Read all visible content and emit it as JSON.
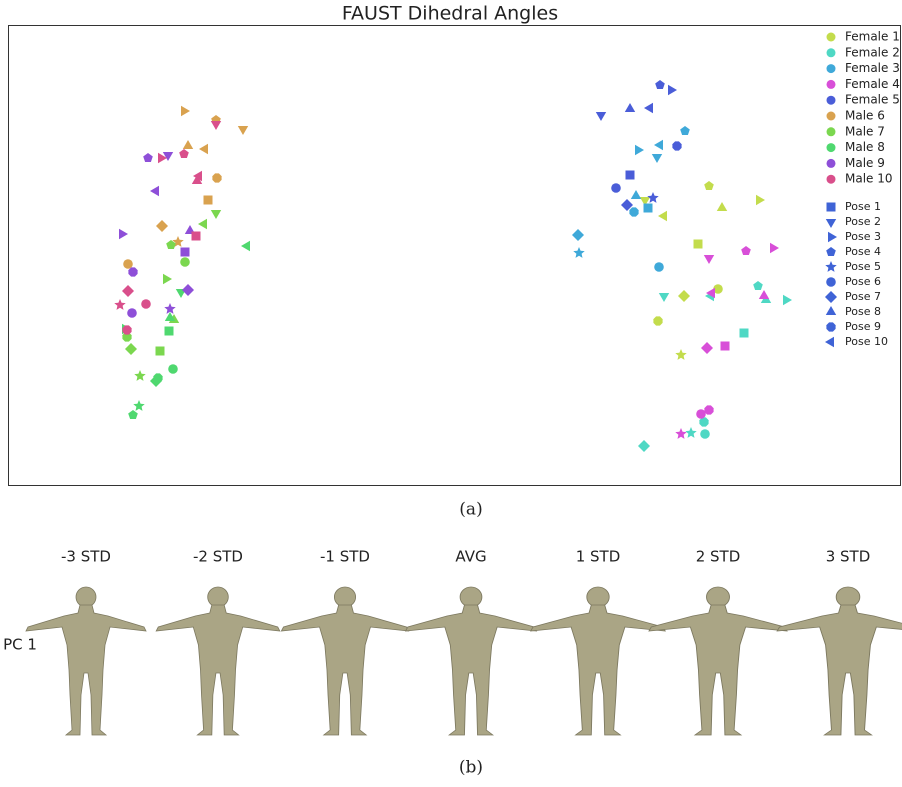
{
  "chart_data": {
    "type": "scatter",
    "title": "FAUST Dihedral Angles",
    "xlim": [
      0,
      894
    ],
    "ylim": [
      0,
      460
    ],
    "markers": [
      "square",
      "triangle-down",
      "triangle-right",
      "pentagon",
      "star",
      "circle",
      "diamond",
      "triangle-up",
      "octagon",
      "triangle-left"
    ],
    "marker_names": [
      "Pose 1",
      "Pose 2",
      "Pose 3",
      "Pose 4",
      "Pose 5",
      "Pose 6",
      "Pose 7",
      "Pose 8",
      "Pose 9",
      "Pose 10"
    ],
    "marker_legend_color": "#3f63d6",
    "series": [
      {
        "name": "Female 1",
        "color": "#c3dc4c",
        "x": [
          690,
          637,
          751,
          701,
          673,
          710,
          676,
          714,
          650,
          656
        ],
        "y": [
          241,
          285,
          285,
          299,
          130,
          196,
          189,
          277,
          164,
          269
        ]
      },
      {
        "name": "Female 2",
        "color": "#4fd8c4",
        "x": [
          736,
          656,
          778,
          750,
          683,
          697,
          636,
          758,
          696,
          703
        ],
        "y": [
          152,
          189,
          185,
          199,
          52,
          51,
          39,
          185,
          63,
          189
        ]
      },
      {
        "name": "Female 3",
        "color": "#3fa9d9",
        "x": [
          640,
          649,
          630,
          677,
          571,
          651,
          570,
          628,
          626,
          652
        ],
        "y": [
          277,
          328,
          335,
          354,
          232,
          218,
          250,
          289,
          273,
          340
        ]
      },
      {
        "name": "Female 4",
        "color": "#d84fd8",
        "x": [
          717,
          701,
          765,
          738,
          673,
          693,
          699,
          756,
          701,
          704
        ],
        "y": [
          139,
          227,
          237,
          234,
          51,
          71,
          137,
          189,
          75,
          192
        ]
      },
      {
        "name": "Female 5",
        "color": "#4a5dd8",
        "x": [
          622,
          593,
          663,
          652,
          645,
          608,
          619,
          622,
          669,
          642
        ],
        "y": [
          310,
          370,
          395,
          400,
          287,
          297,
          280,
          376,
          339,
          377
        ]
      },
      {
        "name": "Male 6",
        "color": "#d9a24f",
        "x": [
          200,
          235,
          176,
          208,
          170,
          120,
          154,
          180,
          209,
          197
        ],
        "y": [
          285,
          356,
          374,
          365,
          243,
          221,
          259,
          339,
          307,
          336
        ]
      },
      {
        "name": "Male 7",
        "color": "#7bd74f",
        "x": [
          152,
          208,
          158,
          163,
          132,
          177,
          123,
          166,
          119,
          196
        ],
        "y": [
          134,
          272,
          206,
          240,
          109,
          223,
          136,
          165,
          148,
          261
        ]
      },
      {
        "name": "Male 8",
        "color": "#4fd86f",
        "x": [
          161,
          173,
          117,
          125,
          131,
          165,
          148,
          162,
          150,
          239
        ],
        "y": [
          154,
          193,
          156,
          70,
          79,
          116,
          104,
          167,
          107,
          239
        ]
      },
      {
        "name": "Male 9",
        "color": "#8e4fd8",
        "x": [
          177,
          160,
          114,
          140,
          162,
          124,
          180,
          182,
          125,
          148
        ],
        "y": [
          233,
          330,
          251,
          327,
          176,
          172,
          195,
          254,
          213,
          294
        ]
      },
      {
        "name": "Male 10",
        "color": "#d94f8b",
        "x": [
          188,
          208,
          153,
          176,
          112,
          138,
          120,
          189,
          119,
          191
        ],
        "y": [
          249,
          361,
          327,
          331,
          180,
          181,
          194,
          304,
          155,
          309
        ]
      }
    ]
  },
  "panel_b": {
    "columns": [
      "-3 STD",
      "-2 STD",
      "-1 STD",
      "AVG",
      "1 STD",
      "2 STD",
      "3 STD"
    ],
    "row_label": "PC 1"
  },
  "captions": [
    "(a)",
    "(b)"
  ]
}
